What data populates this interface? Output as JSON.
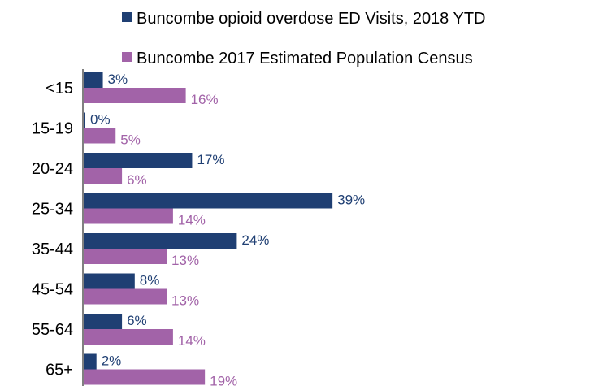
{
  "chart_data": {
    "type": "bar",
    "orientation": "horizontal",
    "categories": [
      "<15",
      "15-19",
      "20-24",
      "25-34",
      "35-44",
      "45-54",
      "55-64",
      "65+"
    ],
    "series": [
      {
        "name": "Buncombe opioid overdose ED Visits, 2018 YTD",
        "values": [
          3,
          0,
          17,
          39,
          24,
          8,
          6,
          2
        ],
        "labels": [
          "3%",
          "0%",
          "17%",
          "39%",
          "24%",
          "8%",
          "6%",
          "2%"
        ],
        "color": "#1f3f73"
      },
      {
        "name": "Buncombe 2017 Estimated Population Census",
        "values": [
          16,
          5,
          6,
          14,
          13,
          13,
          14,
          19
        ],
        "labels": [
          "16%",
          "5%",
          "6%",
          "14%",
          "13%",
          "13%",
          "14%",
          "19%"
        ],
        "color": "#a263a8"
      }
    ],
    "unit": "%",
    "xlim": [
      0,
      40
    ],
    "legend_position": "top",
    "grid": false
  }
}
